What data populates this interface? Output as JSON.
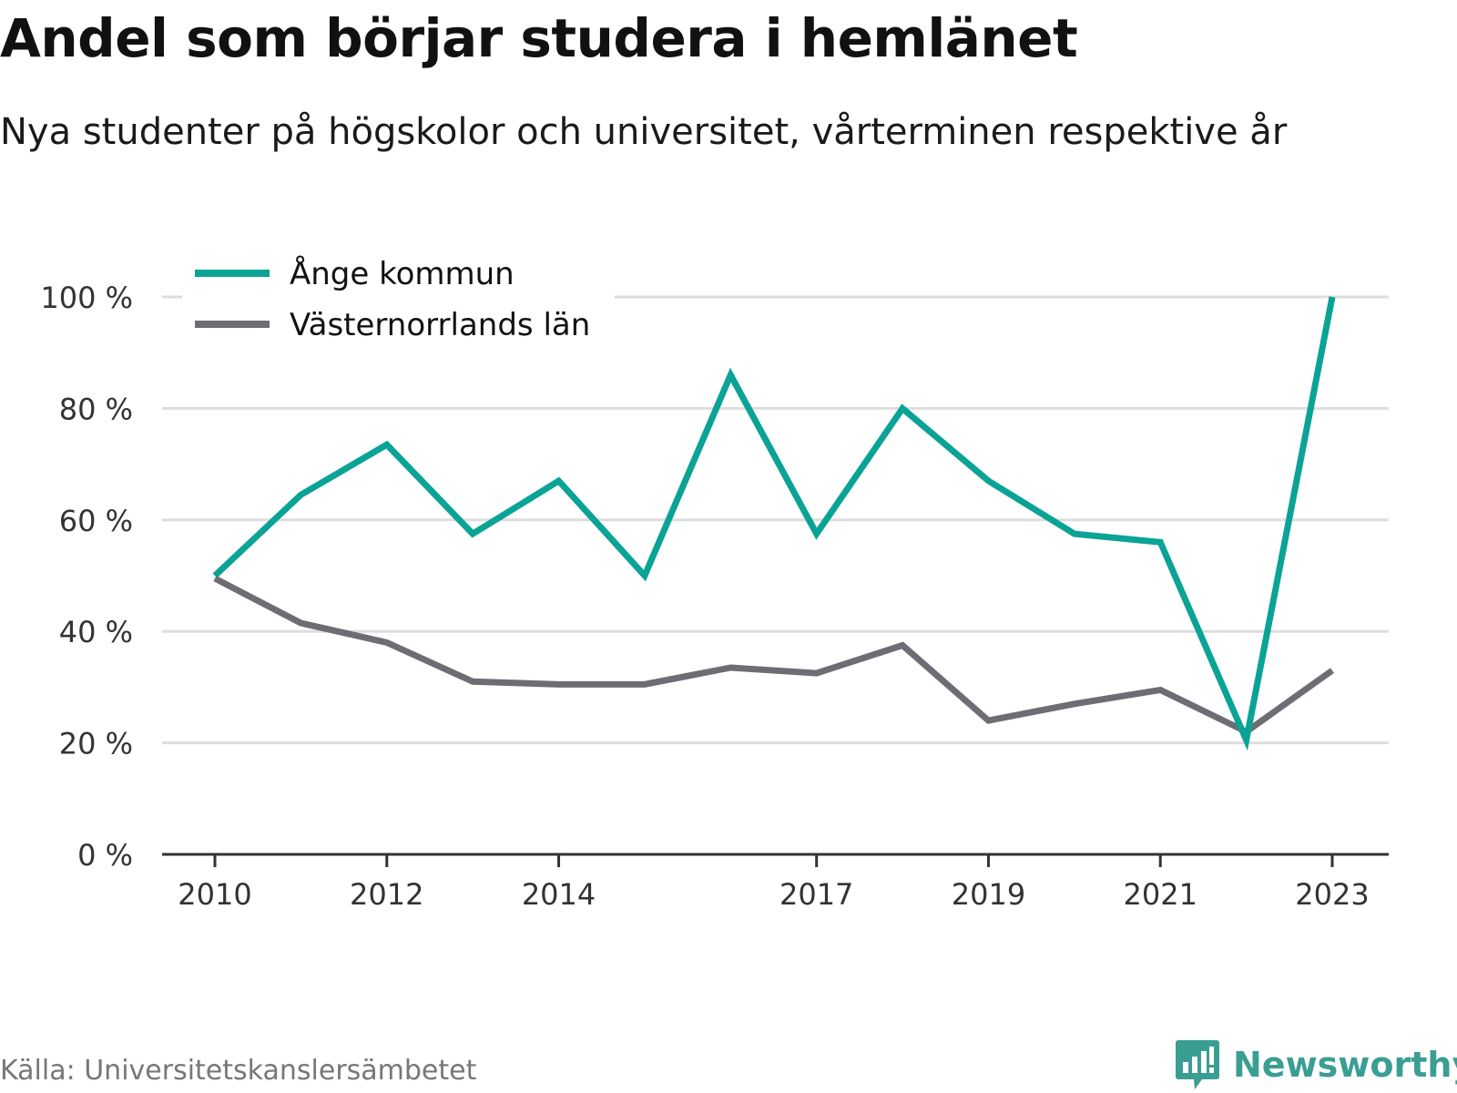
{
  "header": {
    "title": "Andel som börjar studera i hemlänet",
    "subtitle": "Nya studenter på högskolor och universitet, vårterminen respektive år"
  },
  "footer": {
    "source": "Källa: Universitetskanslersämbetet",
    "brand": "Newsworthy"
  },
  "colors": {
    "ange": "#0aa396",
    "lan": "#6e6d74",
    "grid": "#dddddd",
    "axis": "#333333",
    "brand": "#3a9e93"
  },
  "icons": {
    "brand": "newsworthy-logo-icon"
  },
  "chart_data": {
    "type": "line",
    "title": "Andel som börjar studera i hemlänet",
    "subtitle": "Nya studenter på högskolor och universitet, vårterminen respektive år",
    "x": [
      2010,
      2011,
      2012,
      2013,
      2014,
      2015,
      2016,
      2017,
      2018,
      2019,
      2020,
      2021,
      2022,
      2023
    ],
    "x_ticks": [
      2010,
      2012,
      2014,
      2017,
      2019,
      2021,
      2023
    ],
    "y_ticks": [
      0,
      20,
      40,
      60,
      80,
      100
    ],
    "y_tick_labels": [
      "0 %",
      "20 %",
      "40 %",
      "60 %",
      "80 %",
      "100 %"
    ],
    "ylim": [
      0,
      100
    ],
    "grid": true,
    "legend_position": "top-left",
    "series": [
      {
        "name": "Ånge kommun",
        "color": "#0aa396",
        "values": [
          50,
          64.5,
          73.5,
          57.5,
          67,
          50,
          86,
          57.5,
          80,
          67,
          57.5,
          56,
          20.5,
          100
        ]
      },
      {
        "name": "Västernorrlands län",
        "color": "#6e6d74",
        "values": [
          49.5,
          41.5,
          38,
          31,
          30.5,
          30.5,
          33.5,
          32.5,
          37.5,
          24,
          27,
          29.5,
          22,
          33
        ]
      }
    ]
  }
}
